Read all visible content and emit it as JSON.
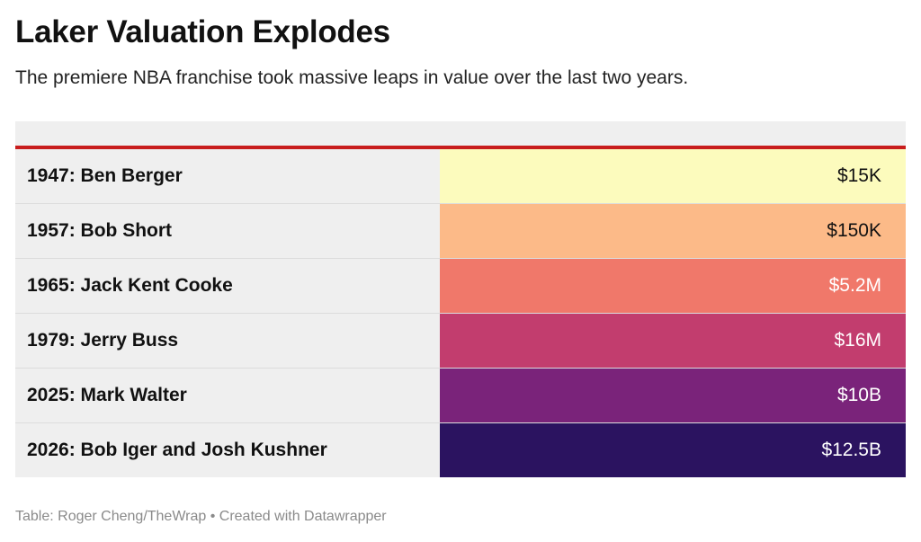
{
  "title": "Laker Valuation Explodes",
  "subtitle": "The premiere NBA franchise took massive leaps in value over the last two years.",
  "footer": {
    "source": "Table: Roger Cheng/TheWrap",
    "separator": " • ",
    "credit": "Created with Datawrapper"
  },
  "colors": {
    "header_rule": "#c81d1d",
    "label_bg": "#efefef"
  },
  "chart_data": {
    "type": "table",
    "columns": [
      "",
      ""
    ],
    "rows": [
      {
        "label": "1947: Ben Berger",
        "value": "$15K",
        "numeric": 15000,
        "bg": "#fcfbbd",
        "fg": "#111111"
      },
      {
        "label": "1957: Bob Short",
        "value": "$150K",
        "numeric": 150000,
        "bg": "#fcba88",
        "fg": "#111111"
      },
      {
        "label": "1965: Jack Kent Cooke",
        "value": "$5.2M",
        "numeric": 5200000,
        "bg": "#f0786a",
        "fg": "#ffffff"
      },
      {
        "label": "1979: Jerry Buss",
        "value": "$16M",
        "numeric": 16000000,
        "bg": "#c23d6e",
        "fg": "#ffffff"
      },
      {
        "label": "2025: Mark Walter",
        "value": "$10B",
        "numeric": 10000000000,
        "bg": "#7a237a",
        "fg": "#ffffff"
      },
      {
        "label": "2026: Bob Iger and Josh Kushner",
        "value": "$12.5B",
        "numeric": 12500000000,
        "bg": "#2b1360",
        "fg": "#ffffff"
      }
    ]
  }
}
